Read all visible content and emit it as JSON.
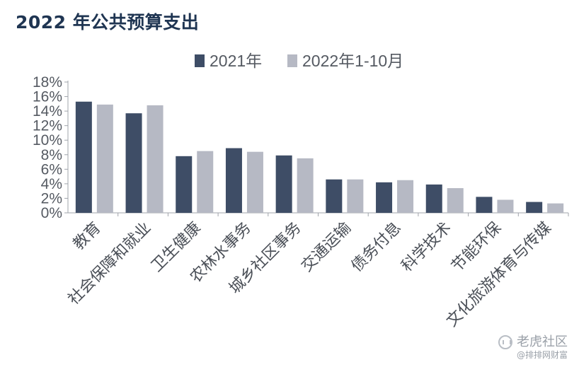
{
  "title": "2022 年公共预算支出",
  "colors": {
    "series_2021": "#3e4d66",
    "series_2022": "#b6b9c4",
    "axis": "#a0a4ab"
  },
  "watermark": {
    "icon": "tiger-icon",
    "main": "老虎社区",
    "sub": "@排排网财富"
  },
  "chart_data": {
    "type": "bar",
    "title": "2022 年公共预算支出",
    "categories": [
      "教育",
      "社会保障和就业",
      "卫生健康",
      "农林水事务",
      "城乡社区事务",
      "交通运输",
      "债务付息",
      "科学技术",
      "节能环保",
      "文化旅游体育与传媒"
    ],
    "series": [
      {
        "name": "2021年",
        "values": [
          15.3,
          13.7,
          7.8,
          8.9,
          7.9,
          4.6,
          4.2,
          3.9,
          2.2,
          1.5
        ]
      },
      {
        "name": "2022年1-10月",
        "values": [
          14.9,
          14.8,
          8.5,
          8.4,
          7.5,
          4.6,
          4.5,
          3.4,
          1.8,
          1.3
        ]
      }
    ],
    "y_ticks": [
      "0%",
      "2%",
      "4%",
      "6%",
      "8%",
      "10%",
      "12%",
      "14%",
      "16%",
      "18%"
    ],
    "ylim": [
      0,
      18
    ],
    "legend": "top-center",
    "grid": false
  }
}
